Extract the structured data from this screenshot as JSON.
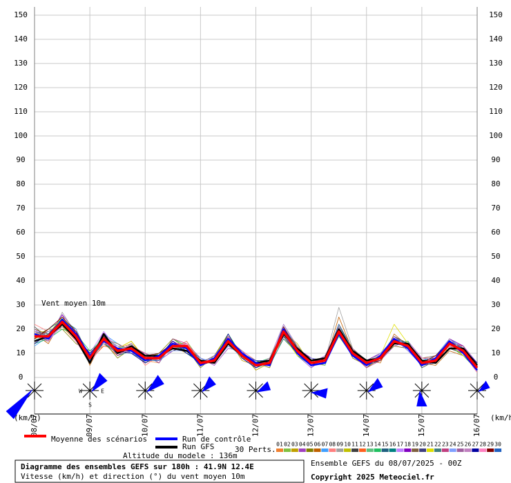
{
  "chart_data": {
    "type": "line",
    "annotation": "Vent moyen 10m",
    "y_unit_left": "(km/h)",
    "y_unit_right": "(km/h)",
    "categories": [
      "08/07",
      null,
      null,
      null,
      "09/07",
      null,
      null,
      null,
      "10/07",
      null,
      null,
      null,
      "11/07",
      null,
      null,
      null,
      "12/07",
      null,
      null,
      null,
      "13/07",
      null,
      null,
      null,
      "14/07",
      null,
      null,
      null,
      "15/07",
      null,
      null,
      null,
      "16/07"
    ],
    "ylim": [
      0,
      150
    ],
    "yticks": [
      0,
      10,
      20,
      30,
      40,
      50,
      60,
      70,
      80,
      90,
      100,
      110,
      120,
      130,
      140,
      150
    ],
    "grid": true,
    "main_series": [
      {
        "name": "Moyenne des scénarios",
        "color": "#ff0000",
        "values": [
          17,
          17,
          23,
          17,
          8,
          16,
          11,
          12,
          8,
          8,
          13,
          13,
          6,
          7,
          15,
          9,
          5,
          6,
          19,
          11,
          6,
          7,
          19,
          10,
          6,
          8,
          15,
          13,
          6,
          7,
          14,
          11,
          4
        ]
      },
      {
        "name": "Run de contrôle",
        "color": "#0000ff",
        "values": [
          18,
          16,
          24,
          18,
          9,
          15,
          12,
          11,
          7,
          9,
          14,
          12,
          5,
          8,
          16,
          10,
          6,
          5,
          20,
          10,
          5,
          6,
          18,
          9,
          5,
          9,
          16,
          12,
          5,
          8,
          15,
          10,
          3
        ]
      },
      {
        "name": "Run GFS",
        "color": "#000000",
        "values": [
          15,
          17,
          22,
          16,
          6,
          18,
          10,
          13,
          9,
          9,
          12,
          11,
          7,
          6,
          14,
          9,
          6,
          7,
          18,
          12,
          7,
          8,
          20,
          11,
          7,
          8,
          14,
          14,
          7,
          6,
          12,
          12,
          5
        ]
      }
    ],
    "perturbations_label": "30 Perts.",
    "series": [
      {
        "name": "01",
        "color": "#f08030",
        "values": [
          16,
          19,
          21,
          15,
          10,
          14,
          9,
          13,
          7,
          6,
          14,
          12,
          5,
          8,
          17,
          8,
          4,
          7,
          18,
          10,
          5,
          9,
          21,
          11,
          5,
          7,
          16,
          12,
          7,
          8,
          13,
          9,
          3
        ]
      },
      {
        "name": "02",
        "color": "#80c040",
        "values": [
          19,
          15,
          25,
          18,
          6,
          17,
          13,
          10,
          9,
          8,
          12,
          15,
          7,
          6,
          13,
          10,
          6,
          5,
          20,
          12,
          7,
          6,
          17,
          9,
          7,
          10,
          14,
          14,
          5,
          6,
          16,
          12,
          5
        ]
      },
      {
        "name": "03",
        "color": "#c0a000",
        "values": [
          20,
          18,
          22,
          16,
          9,
          13,
          12,
          14,
          6,
          9,
          15,
          11,
          6,
          7,
          16,
          7,
          5,
          8,
          17,
          13,
          6,
          5,
          22,
          10,
          4,
          8,
          17,
          11,
          6,
          9,
          12,
          10,
          2
        ]
      },
      {
        "name": "04",
        "color": "#a040c0",
        "values": [
          14,
          16,
          26,
          19,
          7,
          19,
          10,
          11,
          10,
          7,
          11,
          14,
          8,
          5,
          12,
          11,
          3,
          6,
          21,
          9,
          4,
          8,
          18,
          12,
          6,
          7,
          13,
          15,
          8,
          7,
          15,
          13,
          6
        ]
      },
      {
        "name": "05",
        "color": "#808000",
        "values": [
          17,
          20,
          20,
          14,
          11,
          15,
          8,
          12,
          8,
          10,
          16,
          12,
          4,
          9,
          18,
          9,
          6,
          4,
          19,
          11,
          8,
          7,
          20,
          8,
          5,
          9,
          15,
          12,
          5,
          8,
          14,
          11,
          4
        ]
      },
      {
        "name": "06",
        "color": "#c06000",
        "values": [
          18,
          14,
          24,
          20,
          5,
          16,
          12,
          15,
          7,
          8,
          13,
          10,
          6,
          6,
          15,
          10,
          5,
          7,
          16,
          10,
          6,
          6,
          25,
          11,
          7,
          6,
          18,
          13,
          6,
          5,
          11,
          9,
          3
        ]
      },
      {
        "name": "07",
        "color": "#40a0ff",
        "values": [
          13,
          17,
          22,
          17,
          8,
          18,
          14,
          10,
          9,
          6,
          14,
          13,
          7,
          8,
          14,
          8,
          4,
          6,
          22,
          12,
          5,
          9,
          19,
          10,
          6,
          8,
          14,
          14,
          7,
          9,
          16,
          12,
          5
        ]
      },
      {
        "name": "08",
        "color": "#ff8080",
        "values": [
          22,
          19,
          23,
          15,
          9,
          14,
          11,
          13,
          5,
          9,
          12,
          15,
          5,
          7,
          16,
          11,
          7,
          5,
          18,
          9,
          7,
          6,
          21,
          9,
          4,
          10,
          16,
          11,
          5,
          7,
          13,
          10,
          4
        ]
      },
      {
        "name": "09",
        "color": "#a0a0a0",
        "values": [
          16,
          15,
          27,
          18,
          6,
          17,
          9,
          12,
          10,
          8,
          15,
          11,
          8,
          6,
          13,
          9,
          5,
          8,
          20,
          11,
          6,
          7,
          29,
          12,
          7,
          7,
          15,
          13,
          6,
          6,
          14,
          11,
          2
        ]
      },
      {
        "name": "10",
        "color": "#c0c000",
        "values": [
          15,
          18,
          21,
          16,
          10,
          15,
          13,
          11,
          8,
          7,
          13,
          12,
          6,
          9,
          17,
          10,
          3,
          6,
          19,
          14,
          5,
          8,
          18,
          10,
          5,
          9,
          13,
          12,
          8,
          8,
          15,
          12,
          5
        ]
      },
      {
        "name": "11",
        "color": "#404040",
        "values": [
          21,
          16,
          24,
          19,
          8,
          16,
          10,
          14,
          7,
          9,
          11,
          13,
          5,
          7,
          15,
          8,
          6,
          7,
          17,
          10,
          8,
          6,
          20,
          11,
          6,
          8,
          17,
          14,
          4,
          7,
          12,
          10,
          3
        ]
      },
      {
        "name": "12",
        "color": "#ff6020",
        "values": [
          17,
          19,
          22,
          17,
          7,
          13,
          12,
          10,
          9,
          8,
          14,
          14,
          7,
          6,
          16,
          9,
          5,
          5,
          21,
          12,
          6,
          7,
          19,
          9,
          7,
          8,
          16,
          13,
          6,
          9,
          14,
          13,
          4
        ]
      },
      {
        "name": "13",
        "color": "#60c080",
        "values": [
          18,
          17,
          25,
          15,
          9,
          18,
          11,
          13,
          6,
          10,
          13,
          11,
          6,
          8,
          14,
          10,
          4,
          6,
          18,
          11,
          7,
          5,
          22,
          10,
          5,
          7,
          15,
          12,
          7,
          6,
          16,
          11,
          6
        ]
      },
      {
        "name": "14",
        "color": "#20c060",
        "values": [
          14,
          16,
          20,
          18,
          11,
          16,
          13,
          12,
          8,
          7,
          16,
          13,
          5,
          7,
          18,
          9,
          6,
          8,
          20,
          9,
          5,
          8,
          17,
          11,
          6,
          8,
          14,
          15,
          5,
          8,
          13,
          9,
          3
        ]
      },
      {
        "name": "15",
        "color": "#206080",
        "values": [
          19,
          18,
          23,
          16,
          6,
          17,
          9,
          11,
          9,
          8,
          12,
          12,
          8,
          6,
          15,
          11,
          5,
          6,
          19,
          13,
          6,
          6,
          20,
          10,
          4,
          9,
          17,
          12,
          6,
          7,
          15,
          12,
          4
        ]
      },
      {
        "name": "16",
        "color": "#008080",
        "values": [
          16,
          20,
          24,
          20,
          8,
          14,
          10,
          14,
          7,
          9,
          14,
          10,
          6,
          9,
          16,
          8,
          7,
          5,
          16,
          10,
          7,
          7,
          21,
          9,
          6,
          7,
          16,
          13,
          7,
          8,
          14,
          10,
          5
        ]
      },
      {
        "name": "17",
        "color": "#c080ff",
        "values": [
          20,
          15,
          22,
          17,
          10,
          19,
          12,
          10,
          10,
          7,
          13,
          14,
          5,
          7,
          13,
          10,
          4,
          7,
          21,
          11,
          6,
          9,
          18,
          11,
          5,
          8,
          15,
          14,
          5,
          6,
          12,
          11,
          3
        ]
      },
      {
        "name": "18",
        "color": "#8000c0",
        "values": [
          15,
          17,
          26,
          15,
          7,
          15,
          11,
          13,
          8,
          8,
          15,
          12,
          7,
          6,
          17,
          9,
          6,
          6,
          18,
          12,
          8,
          6,
          19,
          10,
          7,
          10,
          16,
          11,
          6,
          7,
          16,
          13,
          4
        ]
      },
      {
        "name": "19",
        "color": "#806040",
        "values": [
          18,
          19,
          21,
          19,
          9,
          16,
          14,
          11,
          6,
          9,
          12,
          13,
          6,
          8,
          15,
          10,
          5,
          8,
          19,
          10,
          5,
          7,
          22,
          12,
          6,
          8,
          13,
          12,
          8,
          9,
          13,
          10,
          6
        ]
      },
      {
        "name": "20",
        "color": "#404080",
        "values": [
          17,
          16,
          23,
          16,
          8,
          17,
          10,
          12,
          9,
          7,
          14,
          11,
          5,
          7,
          14,
          11,
          5,
          5,
          20,
          13,
          6,
          8,
          20,
          9,
          5,
          7,
          17,
          13,
          5,
          6,
          15,
          12,
          3
        ]
      },
      {
        "name": "21",
        "color": "#e0e000",
        "values": [
          16,
          18,
          25,
          18,
          6,
          18,
          12,
          15,
          8,
          9,
          13,
          13,
          7,
          6,
          16,
          8,
          6,
          7,
          17,
          9,
          7,
          7,
          18,
          10,
          7,
          9,
          22,
          14,
          6,
          8,
          14,
          9,
          4
        ]
      },
      {
        "name": "22",
        "color": "#408080",
        "values": [
          19,
          17,
          22,
          17,
          10,
          14,
          11,
          10,
          7,
          8,
          12,
          12,
          6,
          8,
          15,
          10,
          4,
          6,
          21,
          11,
          5,
          6,
          21,
          11,
          6,
          8,
          15,
          12,
          7,
          7,
          16,
          11,
          5
        ]
      },
      {
        "name": "23",
        "color": "#c04080",
        "values": [
          18,
          15,
          24,
          15,
          8,
          16,
          9,
          13,
          10,
          6,
          16,
          14,
          5,
          7,
          17,
          9,
          7,
          7,
          19,
          12,
          6,
          8,
          19,
          10,
          4,
          7,
          14,
          13,
          6,
          9,
          13,
          12,
          3
        ]
      },
      {
        "name": "24",
        "color": "#80a0ff",
        "values": [
          15,
          19,
          22,
          20,
          7,
          17,
          13,
          11,
          8,
          9,
          11,
          11,
          8,
          6,
          13,
          10,
          5,
          5,
          18,
          10,
          8,
          7,
          20,
          9,
          6,
          10,
          16,
          11,
          5,
          7,
          15,
          10,
          4
        ]
      },
      {
        "name": "25",
        "color": "#a060a0",
        "values": [
          20,
          17,
          23,
          16,
          9,
          15,
          10,
          14,
          7,
          8,
          14,
          13,
          6,
          9,
          16,
          9,
          6,
          6,
          20,
          11,
          6,
          6,
          18,
          12,
          5,
          8,
          15,
          14,
          7,
          6,
          12,
          13,
          5
        ]
      },
      {
        "name": "26",
        "color": "#c080c0",
        "values": [
          17,
          16,
          21,
          18,
          8,
          18,
          12,
          12,
          9,
          7,
          13,
          12,
          5,
          7,
          14,
          11,
          5,
          8,
          22,
          13,
          5,
          9,
          21,
          10,
          7,
          7,
          17,
          12,
          6,
          8,
          16,
          11,
          3
        ]
      },
      {
        "name": "27",
        "color": "#0000a0",
        "values": [
          14,
          18,
          24,
          17,
          10,
          16,
          11,
          10,
          6,
          9,
          15,
          10,
          7,
          6,
          18,
          8,
          4,
          7,
          17,
          10,
          7,
          7,
          19,
          11,
          6,
          9,
          14,
          13,
          5,
          7,
          14,
          12,
          6
        ]
      },
      {
        "name": "28",
        "color": "#ff80c0",
        "values": [
          19,
          16,
          22,
          15,
          6,
          14,
          13,
          13,
          8,
          8,
          12,
          14,
          6,
          8,
          15,
          10,
          6,
          5,
          19,
          12,
          6,
          6,
          20,
          9,
          5,
          8,
          16,
          12,
          8,
          8,
          13,
          10,
          2
        ]
      },
      {
        "name": "29",
        "color": "#800000",
        "values": [
          16,
          20,
          25,
          19,
          9,
          17,
          10,
          12,
          9,
          10,
          14,
          12,
          5,
          7,
          16,
          9,
          5,
          6,
          21,
          11,
          5,
          8,
          18,
          10,
          6,
          7,
          15,
          13,
          6,
          9,
          15,
          11,
          4
        ]
      },
      {
        "name": "30",
        "color": "#2060c0",
        "values": [
          18,
          17,
          23,
          16,
          7,
          15,
          12,
          11,
          7,
          7,
          13,
          13,
          7,
          6,
          15,
          10,
          7,
          7,
          18,
          10,
          6,
          7,
          22,
          11,
          5,
          8,
          16,
          14,
          6,
          7,
          14,
          12,
          5
        ]
      }
    ],
    "wind": {
      "direction": [
        225,
        45,
        55,
        50,
        70,
        100,
        60,
        180,
        60
      ],
      "speed": [
        17,
        8,
        8,
        6,
        5,
        6,
        6,
        6,
        4
      ],
      "compass_labels": [
        "W",
        "E",
        "S"
      ]
    },
    "altitude": "Altitude du modele : 136m",
    "box_title": "Diagramme des ensembles GEFS sur 180h : 41.9N 12.4E",
    "box_subtitle": "Vitesse (km/h) et direction (°) du vent moyen 10m",
    "run_info": "Ensemble GEFS du 08/07/2025 - 00Z",
    "copyright": "Copyright 2025 Meteociel.fr"
  }
}
